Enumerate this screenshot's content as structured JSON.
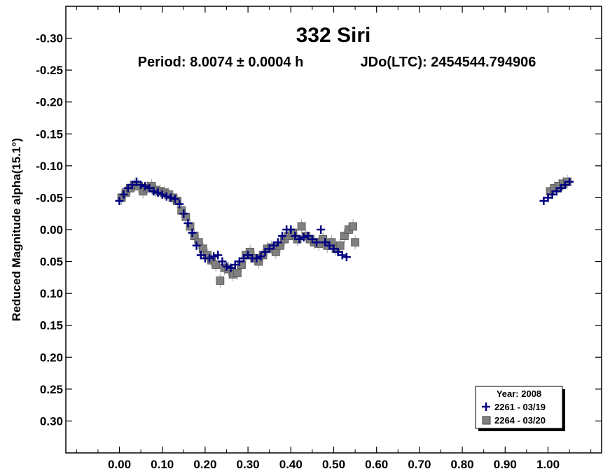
{
  "chart_data": {
    "type": "scatter",
    "title": "332 Siri",
    "subtitle_period": "Period: 8.0074 ± 0.0004 h",
    "subtitle_epoch": "JDo(LTC): 2454544.794906",
    "ylabel": "Reduced Magnitude alpha(15.1°)",
    "xlabel": "",
    "xlim": [
      -0.125,
      1.125
    ],
    "ylim": [
      -0.35,
      0.35
    ],
    "y_inverted": true,
    "grid": false,
    "legend_position": "bottom-right",
    "x_ticks": [
      "0.00",
      "0.10",
      "0.20",
      "0.30",
      "0.40",
      "0.50",
      "0.60",
      "0.70",
      "0.80",
      "0.90",
      "1.00"
    ],
    "y_ticks": [
      "-0.30",
      "-0.25",
      "-0.20",
      "-0.15",
      "-0.10",
      "-0.05",
      "0.00",
      "0.05",
      "0.10",
      "0.15",
      "0.20",
      "0.25",
      "0.30"
    ],
    "legend": {
      "title": "Year: 2008",
      "entries": [
        "2261 - 03/19",
        "2264 - 03/20"
      ]
    },
    "series": [
      {
        "name": "2261 - 03/19",
        "marker": "plus",
        "color": "#000080",
        "x": [
          0.0,
          0.01,
          0.02,
          0.03,
          0.04,
          0.05,
          0.06,
          0.07,
          0.08,
          0.09,
          0.1,
          0.11,
          0.12,
          0.13,
          0.14,
          0.15,
          0.16,
          0.17,
          0.18,
          0.19,
          0.2,
          0.21,
          0.22,
          0.23,
          0.24,
          0.25,
          0.26,
          0.27,
          0.28,
          0.29,
          0.3,
          0.31,
          0.32,
          0.33,
          0.34,
          0.35,
          0.36,
          0.37,
          0.38,
          0.39,
          0.4,
          0.41,
          0.42,
          0.43,
          0.44,
          0.45,
          0.46,
          0.47,
          0.48,
          0.49,
          0.5,
          0.51,
          0.52,
          0.53,
          0.99,
          1.0,
          1.01,
          1.02,
          1.03,
          1.04,
          1.05
        ],
        "y": [
          -0.045,
          -0.055,
          -0.065,
          -0.07,
          -0.075,
          -0.07,
          -0.068,
          -0.065,
          -0.06,
          -0.058,
          -0.055,
          -0.052,
          -0.05,
          -0.048,
          -0.04,
          -0.025,
          -0.01,
          0.005,
          0.025,
          0.04,
          0.045,
          0.045,
          0.042,
          0.04,
          0.05,
          0.058,
          0.06,
          0.055,
          0.05,
          0.045,
          0.04,
          0.045,
          0.045,
          0.042,
          0.035,
          0.03,
          0.025,
          0.02,
          0.01,
          0.0,
          0.0,
          0.01,
          0.015,
          0.012,
          0.01,
          0.015,
          0.02,
          0.0,
          0.02,
          0.025,
          0.03,
          0.035,
          0.04,
          0.043,
          -0.045,
          -0.05,
          -0.055,
          -0.06,
          -0.065,
          -0.07,
          -0.075
        ]
      },
      {
        "name": "2264 - 03/20",
        "marker": "square",
        "color": "#808080",
        "x": [
          0.005,
          0.015,
          0.025,
          0.035,
          0.045,
          0.055,
          0.065,
          0.075,
          0.085,
          0.095,
          0.105,
          0.115,
          0.125,
          0.135,
          0.145,
          0.155,
          0.165,
          0.175,
          0.185,
          0.195,
          0.205,
          0.215,
          0.225,
          0.235,
          0.245,
          0.255,
          0.265,
          0.275,
          0.285,
          0.295,
          0.305,
          0.315,
          0.325,
          0.335,
          0.345,
          0.355,
          0.365,
          0.375,
          0.385,
          0.395,
          0.405,
          0.415,
          0.425,
          0.435,
          0.445,
          0.455,
          0.465,
          0.475,
          0.485,
          0.495,
          0.505,
          0.515,
          0.525,
          0.535,
          0.545,
          0.55,
          1.005,
          1.015,
          1.025,
          1.035,
          1.045
        ],
        "y": [
          -0.05,
          -0.058,
          -0.065,
          -0.07,
          -0.068,
          -0.06,
          -0.065,
          -0.068,
          -0.062,
          -0.06,
          -0.058,
          -0.055,
          -0.05,
          -0.045,
          -0.03,
          -0.02,
          -0.005,
          0.01,
          0.02,
          0.03,
          0.04,
          0.048,
          0.055,
          0.08,
          0.06,
          0.062,
          0.07,
          0.068,
          0.055,
          0.04,
          0.035,
          0.045,
          0.05,
          0.04,
          0.03,
          0.028,
          0.035,
          0.025,
          0.015,
          0.01,
          0.005,
          0.015,
          -0.005,
          0.01,
          0.015,
          0.02,
          0.022,
          0.015,
          0.025,
          0.02,
          0.03,
          0.025,
          0.01,
          0.0,
          -0.005,
          0.02,
          -0.06,
          -0.065,
          -0.068,
          -0.072,
          -0.075
        ]
      }
    ]
  }
}
